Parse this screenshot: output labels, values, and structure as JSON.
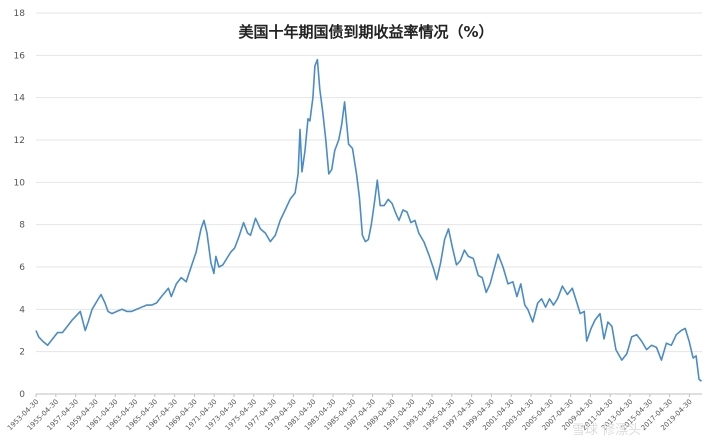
{
  "chart_data": {
    "type": "line",
    "title": "美国十年期国债到期收益率情况（%）",
    "xlabel": "",
    "ylabel": "",
    "ylim": [
      0,
      18
    ],
    "yticks": [
      0,
      2,
      4,
      6,
      8,
      10,
      12,
      14,
      16,
      18
    ],
    "xtick_labels": [
      "1953-04-30",
      "1955-04-30",
      "1957-04-30",
      "1959-04-30",
      "1961-04-30",
      "1963-04-30",
      "1965-04-30",
      "1967-04-30",
      "1969-04-30",
      "1971-04-30",
      "1973-04-30",
      "1975-04-30",
      "1977-04-30",
      "1979-04-30",
      "1981-04-30",
      "1983-04-30",
      "1985-04-30",
      "1987-04-30",
      "1989-04-30",
      "1991-04-30",
      "1993-04-30",
      "1995-04-30",
      "1997-04-30",
      "1999-04-30",
      "2001-04-30",
      "2003-04-30",
      "2005-04-30",
      "2007-04-30",
      "2009-04-30",
      "2011-04-30",
      "2013-04-30",
      "2015-04-30",
      "2017-04-30",
      "2019-04-30"
    ],
    "grid": true,
    "legend": "none",
    "line_color": "#4a8cc7",
    "series": [
      {
        "x": [
          1953.33,
          1953.6,
          1954.0,
          1954.5,
          1955.0,
          1955.5,
          1956.0,
          1956.5,
          1957.0,
          1957.4,
          1957.8,
          1958.3,
          1958.6,
          1959.0,
          1959.5,
          1959.9,
          1960.3,
          1960.6,
          1961.0,
          1961.5,
          1962.0,
          1962.5,
          1963.0,
          1963.5,
          1964.0,
          1964.5,
          1965.0,
          1965.5,
          1966.0,
          1966.7,
          1967.0,
          1967.5,
          1968.0,
          1968.5,
          1969.0,
          1969.5,
          1970.0,
          1970.3,
          1970.6,
          1971.0,
          1971.3,
          1971.5,
          1971.8,
          1972.2,
          1972.6,
          1973.0,
          1973.4,
          1973.8,
          1974.3,
          1974.7,
          1975.0,
          1975.5,
          1976.0,
          1976.5,
          1977.0,
          1977.5,
          1978.0,
          1978.5,
          1979.0,
          1979.5,
          1979.8,
          1980.0,
          1980.2,
          1980.5,
          1980.8,
          1981.0,
          1981.3,
          1981.5,
          1981.75,
          1982.0,
          1982.3,
          1982.6,
          1982.9,
          1983.2,
          1983.5,
          1983.9,
          1984.2,
          1984.5,
          1984.9,
          1985.3,
          1985.7,
          1986.0,
          1986.3,
          1986.6,
          1986.9,
          1987.2,
          1987.5,
          1987.8,
          1988.1,
          1988.5,
          1988.9,
          1989.3,
          1989.7,
          1990.0,
          1990.4,
          1990.8,
          1991.2,
          1991.6,
          1992.0,
          1992.5,
          1993.0,
          1993.5,
          1993.8,
          1994.2,
          1994.6,
          1995.0,
          1995.4,
          1995.8,
          1996.2,
          1996.6,
          1997.0,
          1997.5,
          1998.0,
          1998.4,
          1998.8,
          1999.2,
          1999.6,
          2000.0,
          2000.5,
          2001.0,
          2001.5,
          2001.9,
          2002.3,
          2002.7,
          2003.0,
          2003.5,
          2004.0,
          2004.4,
          2004.8,
          2005.2,
          2005.6,
          2006.0,
          2006.5,
          2007.0,
          2007.5,
          2007.9,
          2008.3,
          2008.7,
          2008.95,
          2009.4,
          2009.8,
          2010.3,
          2010.7,
          2011.1,
          2011.5,
          2011.9,
          2012.5,
          2013.0,
          2013.5,
          2014.0,
          2014.5,
          2015.0,
          2015.5,
          2016.0,
          2016.5,
          2017.0,
          2017.5,
          2018.0,
          2018.5,
          2018.9,
          2019.3,
          2019.7,
          2020.0,
          2020.3,
          2020.55
        ],
        "y": [
          3.0,
          2.7,
          2.5,
          2.3,
          2.6,
          2.9,
          2.9,
          3.2,
          3.5,
          3.7,
          3.9,
          3.0,
          3.4,
          4.0,
          4.4,
          4.7,
          4.3,
          3.9,
          3.8,
          3.9,
          4.0,
          3.9,
          3.9,
          4.0,
          4.1,
          4.2,
          4.2,
          4.3,
          4.6,
          5.0,
          4.6,
          5.2,
          5.5,
          5.3,
          6.0,
          6.7,
          7.8,
          8.2,
          7.6,
          6.2,
          5.7,
          6.5,
          6.0,
          6.1,
          6.4,
          6.7,
          6.9,
          7.4,
          8.1,
          7.6,
          7.5,
          8.3,
          7.8,
          7.6,
          7.2,
          7.5,
          8.2,
          8.7,
          9.2,
          9.5,
          10.4,
          12.5,
          10.5,
          11.5,
          13.0,
          12.9,
          14.0,
          15.5,
          15.8,
          14.4,
          13.3,
          12.0,
          10.4,
          10.6,
          11.5,
          12.0,
          12.7,
          13.8,
          11.8,
          11.6,
          10.4,
          9.3,
          7.5,
          7.2,
          7.3,
          8.0,
          9.0,
          10.1,
          8.9,
          8.9,
          9.2,
          9.0,
          8.5,
          8.2,
          8.7,
          8.6,
          8.1,
          8.2,
          7.6,
          7.2,
          6.6,
          5.9,
          5.4,
          6.2,
          7.3,
          7.8,
          6.9,
          6.1,
          6.3,
          6.8,
          6.5,
          6.4,
          5.6,
          5.5,
          4.8,
          5.2,
          5.9,
          6.6,
          6.0,
          5.2,
          5.3,
          4.6,
          5.2,
          4.2,
          4.0,
          3.4,
          4.3,
          4.5,
          4.1,
          4.5,
          4.2,
          4.5,
          5.1,
          4.7,
          5.0,
          4.4,
          3.8,
          3.9,
          2.5,
          3.1,
          3.5,
          3.8,
          2.6,
          3.4,
          3.2,
          2.1,
          1.6,
          1.9,
          2.7,
          2.8,
          2.5,
          2.1,
          2.3,
          2.2,
          1.6,
          2.4,
          2.3,
          2.8,
          3.0,
          3.1,
          2.5,
          1.7,
          1.8,
          0.7,
          0.6
        ]
      }
    ]
  },
  "watermark": "雪球 修漂头"
}
